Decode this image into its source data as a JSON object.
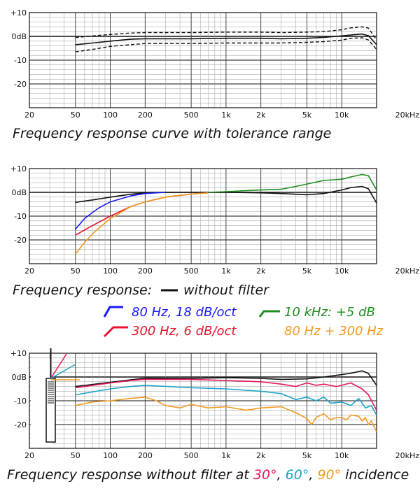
{
  "colors": {
    "black": "#111111",
    "blue": "#1a1aff",
    "red": "#e8132e",
    "green": "#1e8f1e",
    "orange": "#f39a1f",
    "pink": "#e6175c",
    "cyan": "#1aa3c9"
  },
  "chart_data": [
    {
      "type": "line",
      "x_scale": "log",
      "xlim": [
        20,
        20000
      ],
      "ylim": [
        -30,
        10
      ],
      "grid": true,
      "x_ticks": [
        {
          "v": 20,
          "label": "20"
        },
        {
          "v": 50,
          "label": "50"
        },
        {
          "v": 100,
          "label": "100"
        },
        {
          "v": 200,
          "label": "200"
        },
        {
          "v": 500,
          "label": "500"
        },
        {
          "v": 1000,
          "label": "1k"
        },
        {
          "v": 2000,
          "label": "2k"
        },
        {
          "v": 5000,
          "label": "5k"
        },
        {
          "v": 10000,
          "label": "10k"
        },
        {
          "v": 20000,
          "label": "20kHz"
        }
      ],
      "y_ticks": [
        {
          "v": 10,
          "label": "+10"
        },
        {
          "v": 0,
          "label": "0dB"
        },
        {
          "v": -10,
          "label": "-10"
        },
        {
          "v": -20,
          "label": "-20"
        }
      ],
      "caption": "Frequency response curve with tolerance range",
      "series": [
        {
          "color": "black",
          "dashed": false,
          "x": [
            50,
            70,
            100,
            150,
            200,
            500,
            1000,
            2000,
            3000,
            5000,
            7000,
            10000,
            12000,
            15000,
            17000,
            20000
          ],
          "y": [
            -3.5,
            -2.8,
            -2,
            -1.2,
            -1,
            -1,
            -0.8,
            -0.8,
            -1,
            -0.8,
            -0.4,
            0.2,
            0.6,
            1,
            0.3,
            -3.5
          ]
        },
        {
          "color": "black",
          "dashed": true,
          "x": [
            50,
            70,
            100,
            150,
            200,
            500,
            1000,
            2000,
            3000,
            5000,
            7000,
            10000,
            12000,
            15000,
            17000,
            20000
          ],
          "y": [
            -0.5,
            0.2,
            0.8,
            1.4,
            1.6,
            1.6,
            1.8,
            1.8,
            1.6,
            1.8,
            2,
            2.8,
            3.6,
            4,
            3.5,
            -1.5
          ]
        },
        {
          "color": "black",
          "dashed": true,
          "x": [
            50,
            70,
            100,
            150,
            200,
            500,
            1000,
            2000,
            3000,
            5000,
            7000,
            10000,
            12000,
            15000,
            17000,
            20000
          ],
          "y": [
            -6.5,
            -5.5,
            -4.2,
            -3.5,
            -3,
            -3,
            -2.8,
            -2.8,
            -2.8,
            -2.5,
            -2.2,
            -1.6,
            -0.8,
            -0.6,
            -1.5,
            -5.5
          ]
        }
      ]
    },
    {
      "type": "line",
      "x_scale": "log",
      "xlim": [
        20,
        20000
      ],
      "ylim": [
        -30,
        10
      ],
      "grid": true,
      "x_ticks": [
        {
          "v": 20,
          "label": "20"
        },
        {
          "v": 50,
          "label": "50"
        },
        {
          "v": 100,
          "label": "100"
        },
        {
          "v": 200,
          "label": "200"
        },
        {
          "v": 500,
          "label": "500"
        },
        {
          "v": 1000,
          "label": "1k"
        },
        {
          "v": 2000,
          "label": "2k"
        },
        {
          "v": 5000,
          "label": "5k"
        },
        {
          "v": 10000,
          "label": "10k"
        },
        {
          "v": 20000,
          "label": "20kHz"
        }
      ],
      "y_ticks": [
        {
          "v": 10,
          "label": "+10"
        },
        {
          "v": 0,
          "label": "0dB"
        },
        {
          "v": -10,
          "label": "-10"
        },
        {
          "v": -20,
          "label": "-20"
        }
      ],
      "caption": "Frequency response:",
      "legend": [
        {
          "label": "without filter",
          "color": "black"
        },
        {
          "label": "80 Hz, 18 dB/oct",
          "color": "blue"
        },
        {
          "label": "10 kHz: +5 dB",
          "color": "green"
        },
        {
          "label": "300 Hz, 6 dB/oct",
          "color": "red"
        },
        {
          "label": "80 Hz + 300 Hz",
          "color": "orange"
        }
      ],
      "series": [
        {
          "color": "black",
          "x": [
            50,
            70,
            100,
            150,
            200,
            300,
            500,
            1000,
            2000,
            3000,
            5000,
            7000,
            10000,
            12000,
            15000,
            17000,
            20000
          ],
          "y": [
            -4.2,
            -3.2,
            -2,
            -0.8,
            -0.2,
            0,
            0,
            0,
            -0.2,
            -0.5,
            -1,
            -0.5,
            1,
            2,
            2.5,
            1.5,
            -4.5
          ]
        },
        {
          "color": "blue",
          "x": [
            50,
            60,
            70,
            80,
            100,
            150,
            200,
            300
          ],
          "y": [
            -15.5,
            -11,
            -8.5,
            -6.5,
            -4,
            -1.5,
            -0.5,
            0
          ]
        },
        {
          "color": "red",
          "x": [
            50,
            70,
            100,
            150,
            200,
            300,
            500,
            700
          ],
          "y": [
            -18,
            -14,
            -10,
            -6,
            -4,
            -2,
            -0.7,
            -0.2
          ]
        },
        {
          "color": "orange",
          "x": [
            50,
            60,
            70,
            80,
            100,
            150,
            200,
            300,
            500,
            700
          ],
          "y": [
            -26,
            -21,
            -17.5,
            -15,
            -11,
            -6,
            -4,
            -2,
            -0.7,
            -0.2
          ]
        },
        {
          "color": "green",
          "x": [
            700,
            1000,
            1500,
            2000,
            3000,
            4000,
            5000,
            7000,
            10000,
            12000,
            15000,
            17000,
            20000
          ],
          "y": [
            0,
            0.3,
            0.7,
            1,
            1.3,
            2.5,
            3.5,
            5,
            5.5,
            6.5,
            7.5,
            7,
            1
          ]
        }
      ]
    },
    {
      "type": "line",
      "x_scale": "log",
      "xlim": [
        20,
        20000
      ],
      "ylim": [
        -30,
        10
      ],
      "grid": true,
      "x_ticks": [
        {
          "v": 20,
          "label": "20"
        },
        {
          "v": 50,
          "label": "50"
        },
        {
          "v": 100,
          "label": "100"
        },
        {
          "v": 200,
          "label": "200"
        },
        {
          "v": 500,
          "label": "500"
        },
        {
          "v": 1000,
          "label": "1k"
        },
        {
          "v": 2000,
          "label": "2k"
        },
        {
          "v": 5000,
          "label": "5k"
        },
        {
          "v": 10000,
          "label": "10k"
        },
        {
          "v": 20000,
          "label": "20kHz"
        }
      ],
      "y_ticks": [
        {
          "v": 10,
          "label": "+10"
        },
        {
          "v": 0,
          "label": "0dB"
        },
        {
          "v": -10,
          "label": "-10"
        },
        {
          "v": -20,
          "label": "-20"
        }
      ],
      "caption_parts": [
        {
          "text": "Frequency response without filter at ",
          "color": "black"
        },
        {
          "text": "30°",
          "color": "pink"
        },
        {
          "text": ", ",
          "color": "black"
        },
        {
          "text": "60°",
          "color": "cyan"
        },
        {
          "text": ", ",
          "color": "black"
        },
        {
          "text": "90°",
          "color": "orange"
        },
        {
          "text": " incidence",
          "color": "black"
        }
      ],
      "incidence_angles": [
        {
          "angle": 30,
          "color": "pink"
        },
        {
          "angle": 60,
          "color": "cyan"
        },
        {
          "angle": 90,
          "color": "orange"
        }
      ],
      "series": [
        {
          "color": "black",
          "x": [
            50,
            100,
            150,
            200,
            500,
            1000,
            2000,
            3000,
            5000,
            7000,
            10000,
            12000,
            15000,
            17000,
            20000
          ],
          "y": [
            -4,
            -2.2,
            -1.2,
            -0.5,
            -0.6,
            -0.3,
            -0.6,
            -1,
            -0.8,
            0,
            1,
            1.6,
            2.6,
            1.5,
            -3.5
          ]
        },
        {
          "color": "pink",
          "x": [
            50,
            100,
            150,
            200,
            500,
            1000,
            2000,
            3000,
            4000,
            5000,
            6000,
            7000,
            9000,
            12000,
            15000,
            17000,
            20000
          ],
          "y": [
            -4.5,
            -2.5,
            -1.5,
            -1,
            -1,
            -1.5,
            -2,
            -3,
            -4,
            -2.5,
            -3.5,
            -3,
            -4,
            -2.5,
            -5,
            -7.5,
            -14
          ]
        },
        {
          "color": "cyan",
          "x": [
            50,
            100,
            150,
            200,
            500,
            1000,
            2000,
            3000,
            4000,
            5000,
            6000,
            7000,
            8000,
            10000,
            12000,
            14000,
            16000,
            18000,
            20000
          ],
          "y": [
            -7.5,
            -5,
            -4,
            -3.5,
            -4.5,
            -5,
            -6,
            -7,
            -9.5,
            -8.5,
            -10,
            -8.5,
            -11,
            -10.5,
            -12,
            -9,
            -13,
            -12,
            -16
          ]
        },
        {
          "color": "orange",
          "x": [
            50,
            70,
            100,
            150,
            200,
            250,
            300,
            400,
            500,
            700,
            1000,
            1500,
            2000,
            3000,
            4000,
            5000,
            5500,
            6000,
            7000,
            8000,
            9000,
            10000,
            11000,
            12000,
            14000,
            15000,
            16000,
            17000,
            18000,
            20000
          ],
          "y": [
            -12,
            -10.5,
            -10,
            -9,
            -8.5,
            -10,
            -12,
            -13,
            -11.5,
            -13,
            -12.5,
            -14,
            -13,
            -12.5,
            -15,
            -17.5,
            -20,
            -17,
            -15.5,
            -18,
            -17,
            -17,
            -18,
            -16,
            -16.5,
            -18.5,
            -17,
            -20,
            -18.5,
            -23
          ]
        }
      ]
    }
  ]
}
